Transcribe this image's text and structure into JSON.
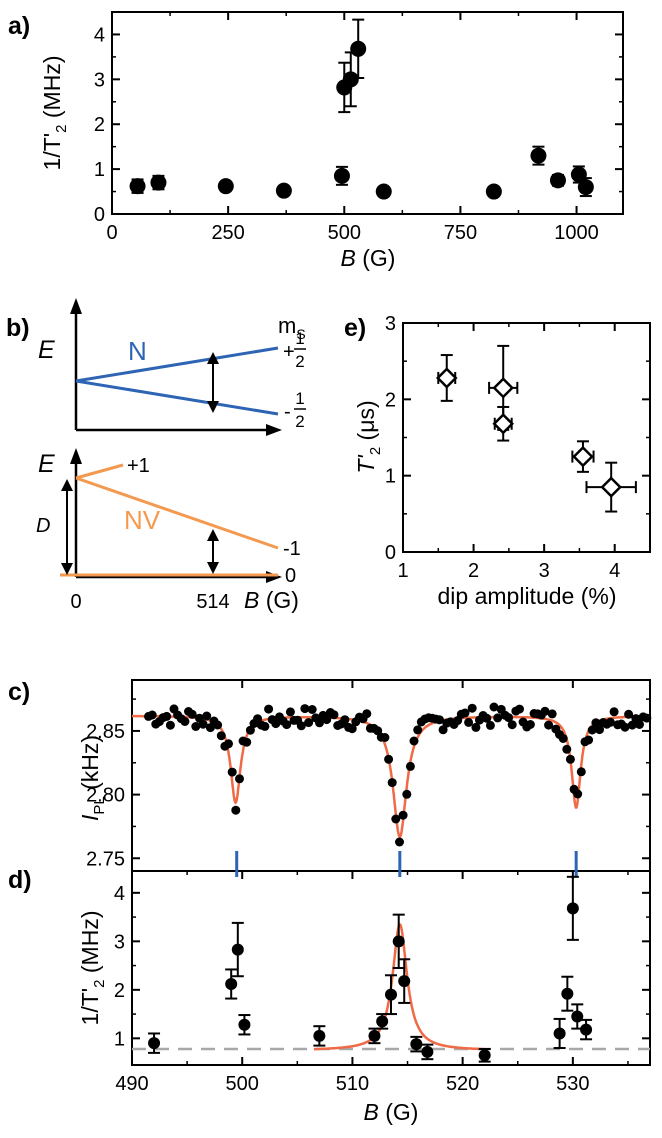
{
  "colors": {
    "blue": "#2e64b4",
    "orange": "#f39a50",
    "fit_red": "#ef6a45",
    "dashed": "#a8a8a8",
    "marker": "#000000"
  },
  "chart_data": [
    {
      "panel": "a)",
      "type": "scatter",
      "xlabel": {
        "sym": "B",
        "unit": " (G)"
      },
      "ylabel": {
        "main": "1/T'",
        "sub": "2",
        "unit": " (MHz)"
      },
      "xlim": [
        0,
        1100
      ],
      "ylim": [
        0,
        4.5
      ],
      "xticks": [
        0,
        250,
        500,
        750,
        1000
      ],
      "yticks": [
        0,
        1,
        2,
        3,
        4
      ],
      "grid": false,
      "points": [
        {
          "x": 55,
          "y": 0.62,
          "yerr": 0.15
        },
        {
          "x": 100,
          "y": 0.7,
          "yerr": 0.15
        },
        {
          "x": 245,
          "y": 0.62,
          "yerr": 0.08
        },
        {
          "x": 370,
          "y": 0.52,
          "yerr": 0.06
        },
        {
          "x": 495,
          "y": 0.85,
          "yerr": 0.2
        },
        {
          "x": 500,
          "y": 2.82,
          "yerr": 0.55
        },
        {
          "x": 514,
          "y": 3.0,
          "yerr": 0.6
        },
        {
          "x": 530,
          "y": 3.68,
          "yerr": 0.65
        },
        {
          "x": 585,
          "y": 0.5,
          "yerr": 0.06
        },
        {
          "x": 822,
          "y": 0.5,
          "yerr": 0.08
        },
        {
          "x": 918,
          "y": 1.3,
          "yerr": 0.2
        },
        {
          "x": 960,
          "y": 0.75,
          "yerr": 0.12
        },
        {
          "x": 1005,
          "y": 0.88,
          "yerr": 0.18
        },
        {
          "x": 1020,
          "y": 0.6,
          "yerr": 0.2
        }
      ]
    },
    {
      "panel": "b)",
      "type": "diagram",
      "axis_symbol": "E",
      "top": {
        "label": "N",
        "ms_header": "m",
        "ms_sub": "S",
        "levels": [
          "+",
          "-"
        ],
        "frac": [
          "1",
          "2"
        ]
      },
      "bottom": {
        "label": "NV",
        "levels": [
          "+1",
          "-1",
          "0"
        ],
        "gap_label": "D"
      },
      "x_ticks": [
        "0",
        "514"
      ],
      "xlabel": {
        "sym": "B",
        "unit": " (G)"
      }
    },
    {
      "panel": "e)",
      "type": "scatter",
      "xlabel": "dip amplitude (%)",
      "ylabel": {
        "main": "T'",
        "sub": "2",
        "unit": " (μs)"
      },
      "xlim": [
        1,
        4.5
      ],
      "ylim": [
        0,
        3
      ],
      "xticks": [
        1,
        2,
        3,
        4
      ],
      "yticks": [
        0,
        1,
        2,
        3
      ],
      "grid": false,
      "points": [
        {
          "x": 1.62,
          "y": 2.28,
          "xerr": 0.12,
          "yerr": 0.3
        },
        {
          "x": 2.42,
          "y": 2.15,
          "xerr": 0.2,
          "yerr": 0.55
        },
        {
          "x": 2.42,
          "y": 1.68,
          "xerr": 0.12,
          "yerr": 0.22
        },
        {
          "x": 3.55,
          "y": 1.25,
          "xerr": 0.15,
          "yerr": 0.2
        },
        {
          "x": 3.95,
          "y": 0.85,
          "xerr": 0.35,
          "yerr": 0.32
        }
      ]
    },
    {
      "panel": "c)",
      "type": "scatter",
      "ylabel": {
        "main": "I",
        "sub": "PL",
        "unit": " (kHz)"
      },
      "xlim": [
        490,
        537
      ],
      "ylim": [
        2.74,
        2.89
      ],
      "yticks": [
        2.75,
        2.8,
        2.85
      ],
      "yticklabels": [
        "2.75",
        "2.80",
        "2.85"
      ],
      "markers_x": [
        499.5,
        514.3,
        530.3
      ],
      "fit": {
        "baseline": 2.862,
        "dips": [
          {
            "x0": 499.4,
            "depth": 0.068,
            "width": 0.55
          },
          {
            "x0": 514.3,
            "depth": 0.095,
            "width": 0.75
          },
          {
            "x0": 530.3,
            "depth": 0.072,
            "width": 0.5
          }
        ]
      }
    },
    {
      "panel": "d)",
      "type": "scatter",
      "xlabel": {
        "sym": "B",
        "unit": " (G)"
      },
      "ylabel": {
        "main": "1/T'",
        "sub": "2",
        "unit": " (MHz)"
      },
      "xlim": [
        490,
        537
      ],
      "ylim": [
        0.45,
        4.45
      ],
      "xticks": [
        490,
        500,
        510,
        520,
        530
      ],
      "yticks": [
        1,
        2,
        3,
        4
      ],
      "dashed_baseline": 0.78,
      "points": [
        {
          "x": 492.0,
          "y": 0.9,
          "yerr": 0.2
        },
        {
          "x": 499.0,
          "y": 2.12,
          "yerr": 0.3
        },
        {
          "x": 499.6,
          "y": 2.83,
          "yerr": 0.55
        },
        {
          "x": 500.2,
          "y": 1.28,
          "yerr": 0.2
        },
        {
          "x": 507.0,
          "y": 1.05,
          "yerr": 0.2
        },
        {
          "x": 512.0,
          "y": 1.05,
          "yerr": 0.15
        },
        {
          "x": 512.7,
          "y": 1.35,
          "yerr": 0.15
        },
        {
          "x": 513.5,
          "y": 1.9,
          "yerr": 0.4
        },
        {
          "x": 514.2,
          "y": 3.0,
          "yerr": 0.55
        },
        {
          "x": 514.7,
          "y": 2.18,
          "yerr": 0.45
        },
        {
          "x": 515.8,
          "y": 0.88,
          "yerr": 0.15
        },
        {
          "x": 516.8,
          "y": 0.72,
          "yerr": 0.15
        },
        {
          "x": 522.0,
          "y": 0.65,
          "yerr": 0.13
        },
        {
          "x": 528.8,
          "y": 1.1,
          "yerr": 0.3
        },
        {
          "x": 529.5,
          "y": 1.92,
          "yerr": 0.35
        },
        {
          "x": 530.0,
          "y": 3.68,
          "yerr": 0.65
        },
        {
          "x": 530.4,
          "y": 1.45,
          "yerr": 0.25
        },
        {
          "x": 531.2,
          "y": 1.18,
          "yerr": 0.2
        }
      ],
      "fit": {
        "x0": 514.3,
        "gamma": 0.8,
        "amp": 2.6,
        "baseline": 0.75
      }
    }
  ]
}
